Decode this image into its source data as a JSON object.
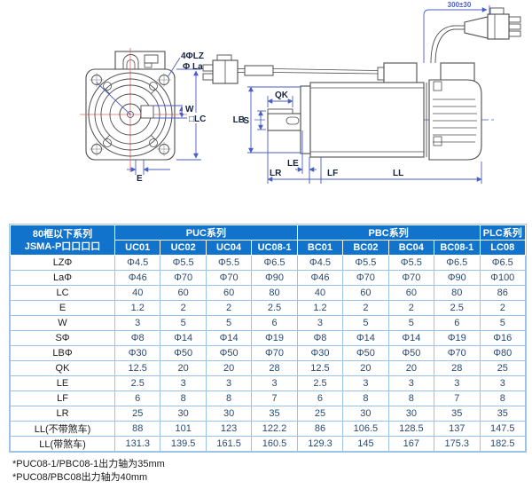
{
  "drawing": {
    "front_view": {
      "labels": {
        "holes": "4ΦLZ",
        "pilot": "Φ La",
        "key_width": "W",
        "frame": "□LC",
        "key_offset": "E"
      }
    },
    "side_view": {
      "labels": {
        "key_length": "QK",
        "pilot_diameter": "LB",
        "shaft_diameter": "S",
        "shoulder": "LE",
        "shaft_length": "LR",
        "flange_thickness": "LF",
        "body_length": "LL",
        "cable_length": "300±30"
      }
    }
  },
  "table": {
    "corner_header": {
      "line1": "80框以下系列",
      "line2": "JSMA-P口口口口"
    },
    "groups": [
      {
        "label": "PUC系列",
        "span": 4
      },
      {
        "label": "PBC系列",
        "span": 4
      },
      {
        "label": "PLC系列",
        "span": 1
      }
    ],
    "columns": [
      "UC01",
      "UC02",
      "UC04",
      "UC08-1",
      "BC01",
      "BC02",
      "BC04",
      "BC08-1",
      "LC08"
    ],
    "rows": [
      {
        "label": "LZΦ",
        "values": [
          "Φ4.5",
          "Φ5.5",
          "Φ5.5",
          "Φ6.5",
          "Φ4.5",
          "Φ5.5",
          "Φ5.5",
          "Φ6.5",
          "Φ6.5"
        ]
      },
      {
        "label": "LaΦ",
        "values": [
          "Φ46",
          "Φ70",
          "Φ70",
          "Φ90",
          "Φ46",
          "Φ70",
          "Φ70",
          "Φ90",
          "Φ100"
        ]
      },
      {
        "label": "LC",
        "values": [
          "40",
          "60",
          "60",
          "80",
          "40",
          "60",
          "60",
          "80",
          "86"
        ]
      },
      {
        "label": "E",
        "values": [
          "1.2",
          "2",
          "2",
          "2.5",
          "1.2",
          "2",
          "2",
          "2.5",
          "2"
        ]
      },
      {
        "label": "W",
        "values": [
          "3",
          "5",
          "5",
          "6",
          "3",
          "5",
          "5",
          "6",
          "5"
        ]
      },
      {
        "label": "SΦ",
        "values": [
          "Φ8",
          "Φ14",
          "Φ14",
          "Φ19",
          "Φ8",
          "Φ14",
          "Φ14",
          "Φ19",
          "Φ16"
        ]
      },
      {
        "label": "LBΦ",
        "values": [
          "Φ30",
          "Φ50",
          "Φ50",
          "Φ70",
          "Φ30",
          "Φ50",
          "Φ50",
          "Φ70",
          "Φ80"
        ]
      },
      {
        "label": "QK",
        "values": [
          "12.5",
          "20",
          "20",
          "28",
          "12.5",
          "20",
          "20",
          "28",
          "25"
        ]
      },
      {
        "label": "LE",
        "values": [
          "2.5",
          "3",
          "3",
          "3",
          "2.5",
          "3",
          "3",
          "3",
          "3"
        ]
      },
      {
        "label": "LF",
        "values": [
          "6",
          "8",
          "8",
          "7",
          "6",
          "8",
          "8",
          "7",
          "8"
        ]
      },
      {
        "label": "LR",
        "values": [
          "25",
          "30",
          "30",
          "35",
          "25",
          "30",
          "30",
          "35",
          "35"
        ]
      },
      {
        "label": "LL(不带煞车)",
        "values": [
          "88",
          "101",
          "123",
          "122.2",
          "86",
          "106.5",
          "128.5",
          "137",
          "147.5"
        ]
      },
      {
        "label": "LL(带煞车)",
        "values": [
          "131.3",
          "139.5",
          "161.5",
          "160.5",
          "129.3",
          "145",
          "167",
          "175.3",
          "182.5"
        ]
      }
    ]
  },
  "footnotes": [
    "*PUC08-1/PBC08-1出力轴为35mm",
    "*PUC08/PBC08出力轴为40mm"
  ],
  "colors": {
    "header_blue": "#1173cb",
    "grid_blue": "#9cc2e5",
    "value_text": "#2b4a6f",
    "dimension_blue": "#4a5fc0",
    "centerline_red": "#d96a6a",
    "outline_gray": "#4d4d4d"
  }
}
